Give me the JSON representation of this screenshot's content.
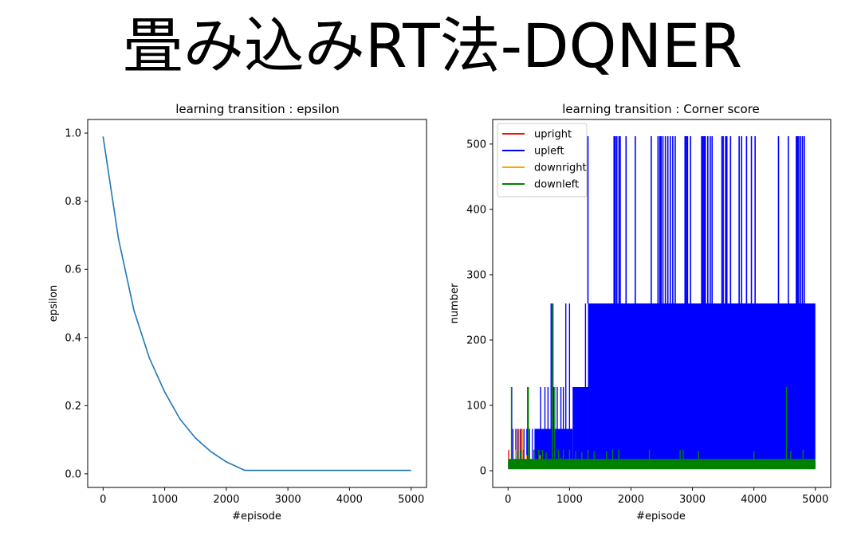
{
  "page": {
    "title": "畳み込みRT法-DQNER"
  },
  "chart_data": [
    {
      "type": "line",
      "title": "learning transition : epsilon",
      "xlabel": "#episode",
      "ylabel": "epsilon",
      "xlim": [
        -250,
        5250
      ],
      "ylim": [
        -0.04,
        1.04
      ],
      "xticks": [
        0,
        1000,
        2000,
        3000,
        4000,
        5000
      ],
      "yticks": [
        0.0,
        0.2,
        0.4,
        0.6,
        0.8,
        1.0
      ],
      "xtick_labels": [
        "0",
        "1000",
        "2000",
        "3000",
        "4000",
        "5000"
      ],
      "ytick_labels": [
        "0.0",
        "0.2",
        "0.4",
        "0.6",
        "0.8",
        "1.0"
      ],
      "grid": false,
      "series": [
        {
          "color": "#1f77b4",
          "x": [
            0,
            250,
            500,
            750,
            1000,
            1250,
            1500,
            1750,
            2000,
            2300,
            3000,
            4000,
            5000
          ],
          "y": [
            0.99,
            0.69,
            0.48,
            0.34,
            0.24,
            0.16,
            0.105,
            0.065,
            0.035,
            0.01,
            0.01,
            0.01,
            0.01
          ]
        }
      ]
    },
    {
      "type": "line",
      "title": "learning transition : Corner score",
      "xlabel": "#episode",
      "ylabel": "number",
      "xlim": [
        -250,
        5250
      ],
      "ylim": [
        -25.6,
        537.6
      ],
      "xticks": [
        0,
        1000,
        2000,
        3000,
        4000,
        5000
      ],
      "yticks": [
        0,
        100,
        200,
        300,
        400,
        500
      ],
      "xtick_labels": [
        "0",
        "1000",
        "2000",
        "3000",
        "4000",
        "5000"
      ],
      "ytick_labels": [
        "0",
        "100",
        "200",
        "300",
        "400",
        "500"
      ],
      "grid": false,
      "legend_position": "top-left",
      "series": [
        {
          "name": "upright",
          "color": "#e8160c"
        },
        {
          "name": "upleft",
          "color": "#0000ff"
        },
        {
          "name": "downright",
          "color": "#ffa500"
        },
        {
          "name": "downleft",
          "color": "#008000"
        }
      ],
      "upleft_levels": {
        "base": 4,
        "low_band_top": 64,
        "high_band_top": 256,
        "peak": 512
      },
      "upleft_band_start": {
        "low": 430,
        "mid": 1050,
        "high": 1300
      },
      "upleft_peaks_x": [
        1300,
        1725,
        1745,
        1770,
        1805,
        1825,
        1920,
        2070,
        2330,
        2440,
        2470,
        2490,
        2520,
        2560,
        2600,
        2640,
        2680,
        2720,
        2880,
        2900,
        2920,
        2970,
        3150,
        3170,
        3190,
        3210,
        3250,
        3290,
        3320,
        3480,
        3500,
        3540,
        3560,
        3620,
        3760,
        3800,
        3880,
        3960,
        4020,
        4400,
        4560,
        4690,
        4710,
        4730,
        4760,
        4790,
        4820
      ],
      "upleft_256_x": [
        700,
        730,
        940,
        1000,
        1260
      ],
      "upleft_128_x": [
        60,
        320,
        530,
        600,
        650,
        740,
        800,
        860,
        900
      ],
      "downleft_levels": {
        "base": 4,
        "band_top": 18
      },
      "downleft_spikes": [
        [
          55,
          128
        ],
        [
          90,
          10
        ],
        [
          150,
          30
        ],
        [
          200,
          32
        ],
        [
          260,
          12
        ],
        [
          330,
          128
        ],
        [
          420,
          32
        ],
        [
          500,
          32
        ],
        [
          560,
          32
        ],
        [
          620,
          28
        ],
        [
          720,
          256
        ],
        [
          760,
          128
        ],
        [
          820,
          32
        ],
        [
          860,
          20
        ],
        [
          900,
          32
        ],
        [
          1000,
          32
        ],
        [
          1100,
          30
        ],
        [
          1200,
          28
        ],
        [
          1300,
          32
        ],
        [
          1400,
          30
        ],
        [
          1600,
          30
        ],
        [
          1700,
          32
        ],
        [
          1800,
          32
        ],
        [
          2300,
          32
        ],
        [
          2800,
          32
        ],
        [
          2850,
          32
        ],
        [
          3100,
          30
        ],
        [
          4000,
          30
        ],
        [
          4530,
          128
        ],
        [
          4600,
          30
        ],
        [
          4800,
          32
        ]
      ],
      "downright_spikes": [
        [
          120,
          32
        ],
        [
          180,
          64
        ],
        [
          240,
          64
        ],
        [
          300,
          24
        ],
        [
          420,
          16
        ],
        [
          520,
          24
        ],
        [
          700,
          16
        ]
      ],
      "upright_spikes": [
        [
          10,
          32
        ],
        [
          30,
          16
        ],
        [
          150,
          64
        ],
        [
          200,
          64
        ],
        [
          250,
          32
        ],
        [
          300,
          16
        ]
      ]
    }
  ]
}
